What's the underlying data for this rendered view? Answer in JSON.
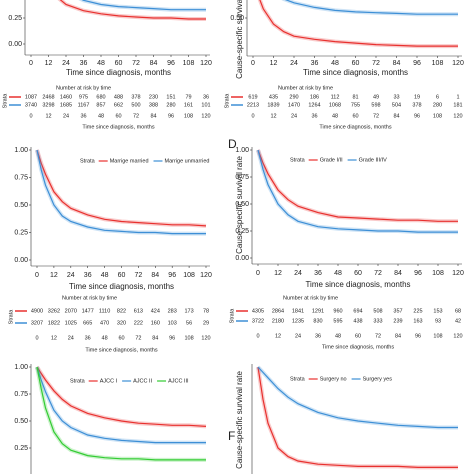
{
  "chart_data": [
    {
      "type": "line",
      "xlabel": "Time since diagnosis, months",
      "x": [
        0,
        3,
        6,
        12,
        18,
        24,
        36,
        48,
        60,
        72,
        84,
        96,
        108,
        120
      ],
      "xlim": [
        0,
        120
      ],
      "xticks": [
        0,
        12,
        24,
        36,
        48,
        60,
        72,
        84,
        96,
        108,
        120
      ],
      "ylim": [
        0,
        1
      ],
      "yticks": [
        {
          "value": 0,
          "label": "0.00"
        },
        {
          "value": 0.25,
          "label": "0.25"
        }
      ],
      "series": [
        {
          "color": "#e8312f",
          "values": [
            1,
            0.85,
            0.72,
            0.55,
            0.45,
            0.38,
            0.32,
            0.29,
            0.27,
            0.26,
            0.25,
            0.25,
            0.24,
            0.24
          ]
        },
        {
          "color": "#3d8fd6",
          "values": [
            1,
            0.92,
            0.82,
            0.68,
            0.57,
            0.5,
            0.42,
            0.38,
            0.36,
            0.35,
            0.34,
            0.33,
            0.33,
            0.33
          ]
        }
      ],
      "risk_table": {
        "title": "Number at risk by time",
        "strata_label": "Strata",
        "rows": [
          {
            "color": "#e8312f",
            "values": [
              1087,
              2468,
              1460,
              975,
              680,
              488,
              378,
              230,
              151,
              79,
              36
            ]
          },
          {
            "color": "#3d8fd6",
            "values": [
              3740,
              3298,
              1685,
              1167,
              857,
              662,
              500,
              388,
              280,
              161,
              101
            ]
          }
        ]
      }
    },
    {
      "type": "line",
      "xlabel": "Time since diagnosis, months",
      "ylabel": "Cause-specific survival rate",
      "x": [
        0,
        3,
        6,
        12,
        18,
        24,
        36,
        48,
        60,
        72,
        84,
        96,
        108,
        120
      ],
      "xlim": [
        0,
        120
      ],
      "xticks": [
        0,
        12,
        24,
        36,
        48,
        60,
        72,
        84,
        96,
        108,
        120
      ],
      "ylim": [
        0,
        1
      ],
      "yticks": [
        {
          "value": 0.5,
          "label": "0.50"
        }
      ],
      "series": [
        {
          "color": "#e8312f",
          "values": [
            1,
            0.8,
            0.62,
            0.42,
            0.32,
            0.26,
            0.22,
            0.19,
            0.17,
            0.15,
            0.14,
            0.13,
            0.13,
            0.13
          ]
        },
        {
          "color": "#3d8fd6",
          "values": [
            1,
            0.95,
            0.9,
            0.82,
            0.75,
            0.7,
            0.64,
            0.6,
            0.58,
            0.57,
            0.56,
            0.55,
            0.55,
            0.55
          ]
        }
      ],
      "risk_table": {
        "title": "Number at risk by time",
        "strata_label": "Strata",
        "rows": [
          {
            "color": "#e8312f",
            "values": [
              619,
              435,
              290,
              186,
              112,
              81,
              49,
              33,
              19,
              6,
              1
            ]
          },
          {
            "color": "#3d8fd6",
            "values": [
              2213,
              1839,
              1470,
              1264,
              1068,
              755,
              598,
              504,
              378,
              280,
              181
            ]
          }
        ]
      }
    },
    {
      "type": "line",
      "xlabel": "Time since diagnosis, months",
      "legend_title": "Strata",
      "x": [
        0,
        3,
        6,
        12,
        18,
        24,
        36,
        48,
        60,
        72,
        84,
        96,
        108,
        120
      ],
      "xlim": [
        0,
        120
      ],
      "xticks": [
        0,
        12,
        24,
        36,
        48,
        60,
        72,
        84,
        96,
        108,
        120
      ],
      "ylim": [
        0,
        1
      ],
      "yticks": [
        {
          "value": 0,
          "label": "0.00"
        },
        {
          "value": 0.25,
          "label": "0.25"
        },
        {
          "value": 0.5,
          "label": "0.50"
        },
        {
          "value": 0.75,
          "label": "0.75"
        },
        {
          "value": 1,
          "label": "1.00"
        }
      ],
      "series": [
        {
          "name": "Marrige married",
          "color": "#e8312f",
          "values": [
            1,
            0.88,
            0.78,
            0.62,
            0.53,
            0.47,
            0.41,
            0.37,
            0.35,
            0.34,
            0.33,
            0.32,
            0.32,
            0.31
          ]
        },
        {
          "name": "Marrige unmarried",
          "color": "#3d8fd6",
          "values": [
            1,
            0.82,
            0.68,
            0.5,
            0.4,
            0.35,
            0.3,
            0.27,
            0.26,
            0.25,
            0.25,
            0.24,
            0.24,
            0.24
          ]
        }
      ],
      "risk_table": {
        "title": "Number at risk by time",
        "strata_label": "Strata",
        "rows": [
          {
            "color": "#e8312f",
            "values": [
              4900,
              3262,
              2070,
              1477,
              1110,
              822,
              613,
              424,
              283,
              173,
              78
            ]
          },
          {
            "color": "#3d8fd6",
            "values": [
              3207,
              1822,
              1025,
              665,
              470,
              320,
              222,
              160,
              103,
              56,
              29
            ]
          }
        ]
      }
    },
    {
      "type": "line",
      "panel_label": "D",
      "xlabel": "Time since diagnosis, months",
      "ylabel": "Cause-specific survival rate",
      "legend_title": "Strata",
      "x": [
        0,
        3,
        6,
        12,
        18,
        24,
        36,
        48,
        60,
        72,
        84,
        96,
        108,
        120
      ],
      "xlim": [
        0,
        120
      ],
      "xticks": [
        0,
        12,
        24,
        36,
        48,
        60,
        72,
        84,
        96,
        108,
        120
      ],
      "ylim": [
        0,
        1
      ],
      "yticks": [
        {
          "value": 0,
          "label": "0.00"
        },
        {
          "value": 0.25,
          "label": "0.25"
        },
        {
          "value": 0.5,
          "label": "0.50"
        },
        {
          "value": 0.75,
          "label": "0.75"
        },
        {
          "value": 1,
          "label": "1.00"
        }
      ],
      "series": [
        {
          "name": "Grade I/II",
          "color": "#e8312f",
          "values": [
            1,
            0.88,
            0.78,
            0.63,
            0.54,
            0.48,
            0.42,
            0.38,
            0.37,
            0.36,
            0.35,
            0.35,
            0.34,
            0.34
          ]
        },
        {
          "name": "Grade III/IV",
          "color": "#3d8fd6",
          "values": [
            1,
            0.82,
            0.68,
            0.5,
            0.4,
            0.34,
            0.29,
            0.27,
            0.26,
            0.25,
            0.25,
            0.24,
            0.24,
            0.24
          ]
        }
      ],
      "risk_table": {
        "title": "Number at risk by time",
        "strata_label": "Strata",
        "rows": [
          {
            "color": "#e8312f",
            "values": [
              4305,
              2864,
              1841,
              1291,
              960,
              694,
              508,
              357,
              225,
              153,
              68
            ]
          },
          {
            "color": "#3d8fd6",
            "values": [
              3722,
              2180,
              1235,
              830,
              595,
              438,
              333,
              239,
              163,
              93,
              42
            ]
          }
        ]
      }
    },
    {
      "type": "line",
      "legend_title": "Strata",
      "x": [
        0,
        3,
        6,
        12,
        18,
        24,
        36,
        48,
        60,
        72,
        84,
        96,
        108,
        120
      ],
      "xlim": [
        0,
        120
      ],
      "ylim": [
        0,
        1
      ],
      "yticks": [
        {
          "value": 0.25,
          "label": "0.25"
        },
        {
          "value": 0.5,
          "label": "0.50"
        },
        {
          "value": 0.75,
          "label": "0.75"
        },
        {
          "value": 1,
          "label": "1.00"
        }
      ],
      "series": [
        {
          "name": "AJCC I",
          "color": "#e8312f",
          "values": [
            1,
            0.94,
            0.88,
            0.78,
            0.7,
            0.64,
            0.57,
            0.53,
            0.5,
            0.48,
            0.47,
            0.46,
            0.46,
            0.45
          ]
        },
        {
          "name": "AJCC II",
          "color": "#3d8fd6",
          "values": [
            1,
            0.88,
            0.77,
            0.6,
            0.5,
            0.44,
            0.37,
            0.34,
            0.32,
            0.31,
            0.3,
            0.3,
            0.3,
            0.3
          ]
        },
        {
          "name": "AJCC III",
          "color": "#33cc33",
          "values": [
            1,
            0.8,
            0.62,
            0.4,
            0.29,
            0.23,
            0.18,
            0.16,
            0.15,
            0.15,
            0.14,
            0.14,
            0.14,
            0.14
          ]
        }
      ]
    },
    {
      "type": "line",
      "panel_label": "F",
      "ylabel": "Cause-specific survival rate",
      "legend_title": "Strata",
      "x": [
        0,
        3,
        6,
        12,
        18,
        24,
        36,
        48,
        60,
        72,
        84,
        96,
        108,
        120
      ],
      "xlim": [
        0,
        120
      ],
      "ylim": [
        0,
        1
      ],
      "series": [
        {
          "name": "Surgery no",
          "color": "#e8312f",
          "values": [
            1,
            0.7,
            0.48,
            0.25,
            0.17,
            0.13,
            0.1,
            0.09,
            0.08,
            0.08,
            0.08,
            0.07,
            0.07,
            0.07
          ]
        },
        {
          "name": "Surgery yes",
          "color": "#3d8fd6",
          "values": [
            1,
            0.95,
            0.9,
            0.8,
            0.72,
            0.66,
            0.58,
            0.53,
            0.5,
            0.48,
            0.46,
            0.45,
            0.44,
            0.44
          ]
        }
      ]
    }
  ]
}
